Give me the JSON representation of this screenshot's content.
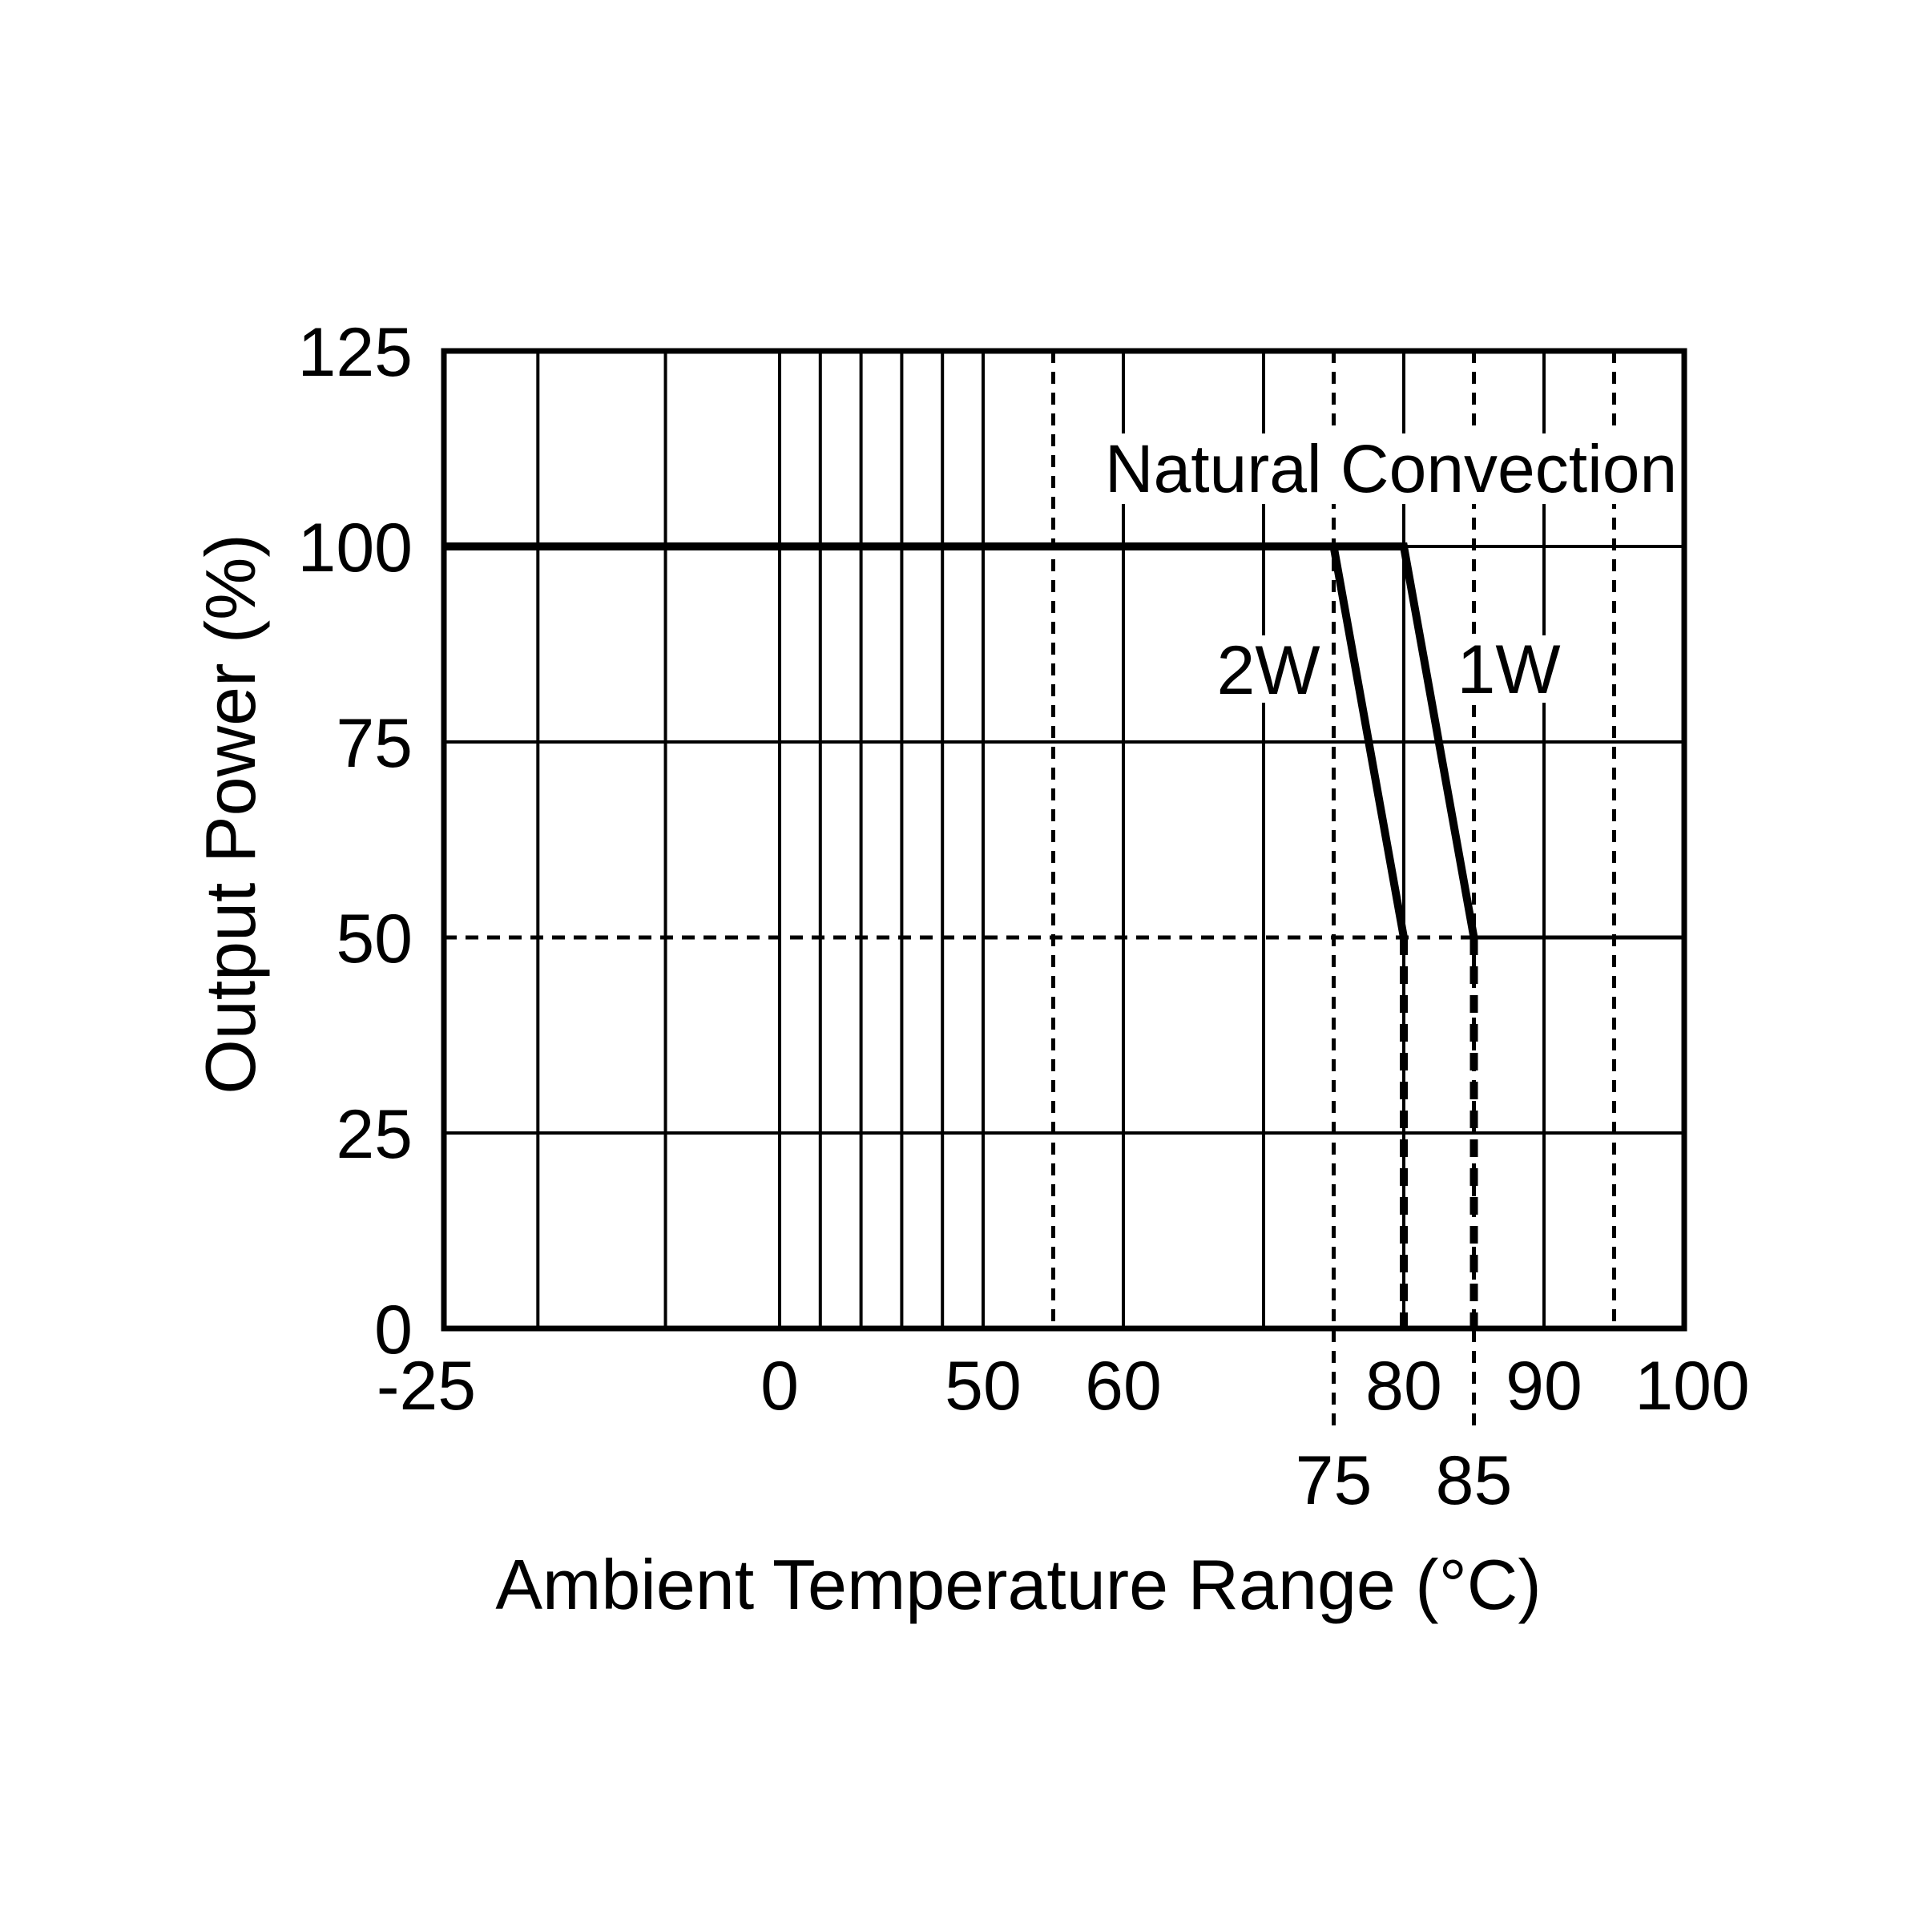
{
  "page": {
    "background": "#ffffff",
    "ink": "#000000"
  },
  "chart_data": {
    "type": "line",
    "title": "",
    "annotation": "Natural Convection",
    "xlabel": "Ambient Temperature Range (°C)",
    "ylabel": "Output Power (%)",
    "xlim": [
      -25,
      100
    ],
    "ylim": [
      0,
      125
    ],
    "grid": "on",
    "x_axis_nonlinear_note": "compressed scale between 0 and 50 °C",
    "y_ticks": [
      {
        "value": 125,
        "label": "125"
      },
      {
        "value": 100,
        "label": "100"
      },
      {
        "value": 75,
        "label": "75"
      },
      {
        "value": 50,
        "label": "50"
      },
      {
        "value": 25,
        "label": "25"
      },
      {
        "value": 0,
        "label": "0"
      }
    ],
    "x_ticks_row1": [
      {
        "t": -25,
        "label": "-25"
      },
      {
        "t": 0,
        "label": "0"
      },
      {
        "t": 50,
        "label": "50"
      },
      {
        "t": 60,
        "label": "60"
      },
      {
        "t": 80,
        "label": "80"
      },
      {
        "t": 90,
        "label": "90"
      },
      {
        "t": 100,
        "label": "100"
      }
    ],
    "x_ticks_row2": [
      {
        "t": 75,
        "label": "75"
      },
      {
        "t": 85,
        "label": "85"
      }
    ],
    "v_gridlines_solid_t": [
      -18,
      -8.5,
      0,
      10,
      20,
      30,
      40,
      50,
      60,
      70,
      80,
      90
    ],
    "v_gridlines_dashed": [
      {
        "t": 55,
        "leader_below_axis": false
      },
      {
        "t": 75,
        "leader_below_axis": true
      },
      {
        "t": 85,
        "leader_below_axis": true
      },
      {
        "t": 95,
        "leader_below_axis": false
      }
    ],
    "h_gridlines_solid_pct": [
      100,
      75,
      25
    ],
    "h_gridline_50pct": {
      "value": 50,
      "dashed_from_t": -25,
      "dashed_to_t": 85,
      "solid_to_t": 100
    },
    "series": [
      {
        "name": "2W",
        "points": [
          [
            -25,
            100
          ],
          [
            75,
            100
          ],
          [
            80,
            50
          ],
          [
            80,
            0
          ]
        ],
        "derate_start_t": 75,
        "derate_end_t": 80,
        "derated_pct": 50
      },
      {
        "name": "1W",
        "points": [
          [
            -25,
            100
          ],
          [
            80,
            100
          ],
          [
            85,
            50
          ],
          [
            85,
            0
          ]
        ],
        "derate_start_t": 80,
        "derate_end_t": 85,
        "derated_pct": 50
      }
    ]
  }
}
